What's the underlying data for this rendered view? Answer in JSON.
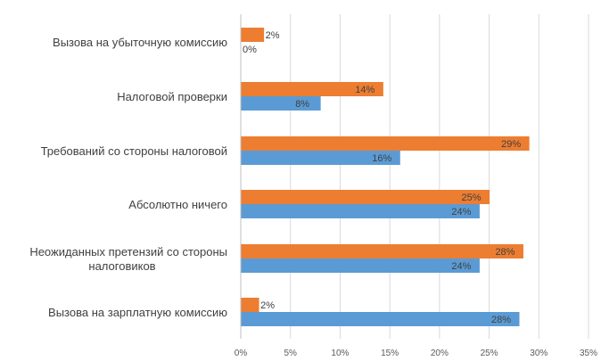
{
  "chart_data": {
    "type": "bar",
    "orientation": "horizontal",
    "title": "",
    "xlabel": "",
    "ylabel": "",
    "xlim": [
      0,
      35
    ],
    "x_ticks": [
      "0%",
      "5%",
      "10%",
      "15%",
      "20%",
      "25%",
      "30%",
      "35%"
    ],
    "x_tick_values": [
      0,
      5,
      10,
      15,
      20,
      25,
      30,
      35
    ],
    "grid": true,
    "legend": "none",
    "value_suffix": "%",
    "categories": [
      [
        "Вызова на убыточную комиссию"
      ],
      [
        "Налоговой проверки"
      ],
      [
        "Требований со стороны налоговой"
      ],
      [
        "Абсолютно ничего"
      ],
      [
        "Неожиданных претензий со стороны",
        "налоговиков"
      ],
      [
        "Вызова на зарплатную комиссию"
      ]
    ],
    "series": [
      {
        "name": "orange-series",
        "color": "#ED7D31",
        "values": [
          2.3,
          14.3,
          29,
          25,
          28.4,
          1.8
        ],
        "labels": [
          "2%",
          "14%",
          "29%",
          "25%",
          "28%",
          "2%"
        ]
      },
      {
        "name": "blue-series",
        "color": "#5B9BD5",
        "values": [
          0,
          8,
          16,
          24,
          24,
          28
        ],
        "labels": [
          "0%",
          "8%",
          "16%",
          "24%",
          "24%",
          "28%"
        ]
      }
    ]
  },
  "style": {
    "grid_color": "#d9d9d9",
    "axis_color": "#bfbfbf"
  }
}
